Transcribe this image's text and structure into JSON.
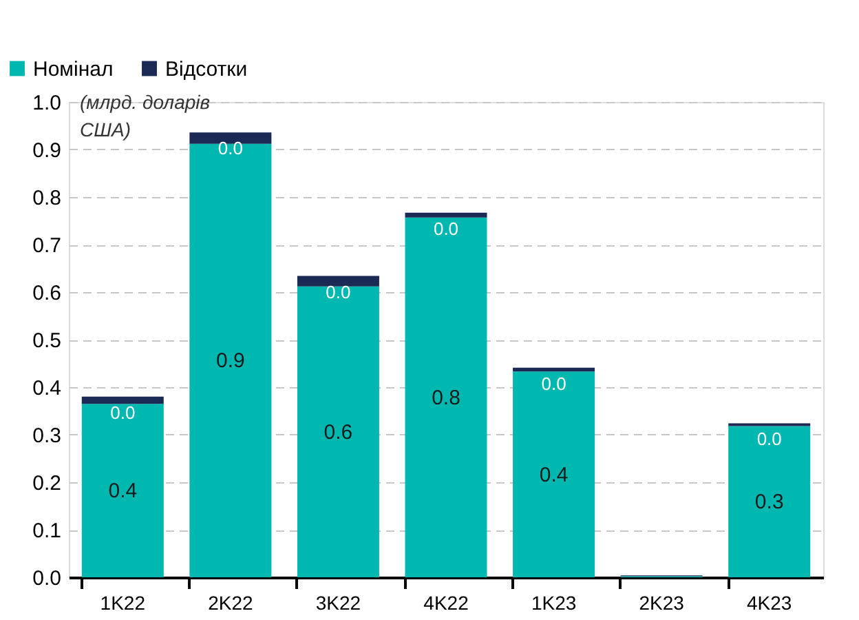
{
  "chart_data": {
    "type": "bar",
    "stacked": true,
    "ylabel": "(млрд. доларів США)",
    "categories": [
      "1K22",
      "2K22",
      "3K22",
      "4K22",
      "1K23",
      "2K23",
      "4K23"
    ],
    "series": [
      {
        "name": "Номінал",
        "color": "#00b8b0",
        "values": [
          0.365,
          0.912,
          0.612,
          0.757,
          0.433,
          0.002,
          0.318
        ],
        "value_labels": [
          "0.4",
          "0.9",
          "0.6",
          "0.8",
          "0.4",
          null,
          "0.3"
        ]
      },
      {
        "name": "Відсотки",
        "color": "#1a2a55",
        "values": [
          0.015,
          0.024,
          0.022,
          0.01,
          0.008,
          0.002,
          0.006
        ],
        "value_labels": [
          "0.0",
          "0.0",
          "0.0",
          "0.0",
          "0.0",
          null,
          "0.0"
        ]
      }
    ],
    "ylim": [
      0,
      1.0
    ],
    "yticks": [
      {
        "value": 0,
        "label": "0.0"
      },
      0.1,
      0.2,
      0.3,
      0.4,
      0.5,
      0.6,
      0.7,
      0.8,
      0.9,
      {
        "value": 1.0,
        "label": "1.0"
      }
    ],
    "grid": "y",
    "legend": "top left"
  }
}
